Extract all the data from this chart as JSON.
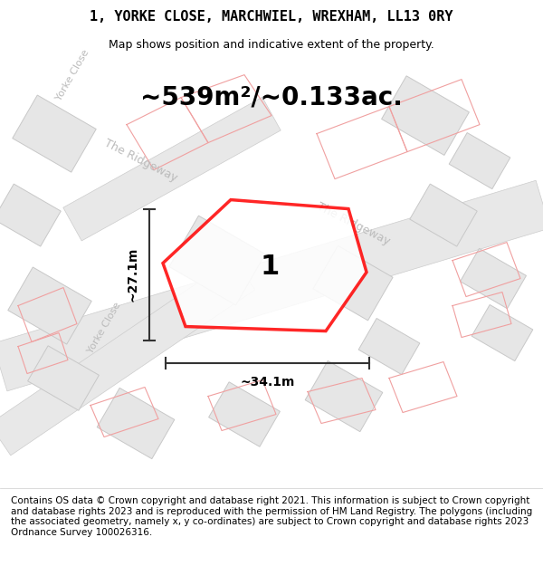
{
  "title": "1, YORKE CLOSE, MARCHWIEL, WREXHAM, LL13 0RY",
  "subtitle": "Map shows position and indicative extent of the property.",
  "area_text": "~539m²/~0.133ac.",
  "width_label": "~34.1m",
  "height_label": "~27.1m",
  "plot_number": "1",
  "footer": "Contains OS data © Crown copyright and database right 2021. This information is subject to Crown copyright and database rights 2023 and is reproduced with the permission of HM Land Registry. The polygons (including the associated geometry, namely x, y co-ordinates) are subject to Crown copyright and database rights 2023 Ordnance Survey 100026316.",
  "bg_color": "#f5f5f5",
  "map_bg": "#f0f0f0",
  "road_color": "#e8e8e8",
  "road_outline": "#d0d0d0",
  "building_color": "#e0e0e0",
  "building_outline": "#c8c8c8",
  "plot_outline": "#ff0000",
  "road_label_color": "#aaaaaa",
  "dim_line_color": "#333333",
  "title_fontsize": 11,
  "subtitle_fontsize": 9,
  "area_fontsize": 18,
  "footer_fontsize": 7.5
}
